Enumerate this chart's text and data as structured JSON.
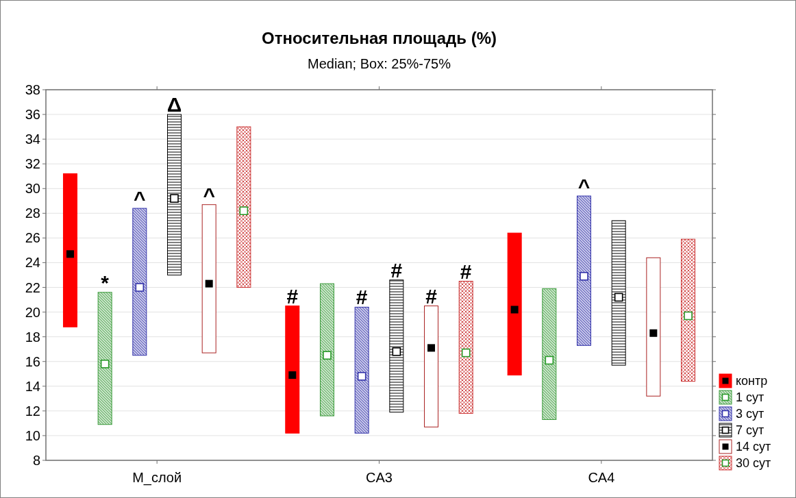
{
  "chart_data": {
    "type": "box",
    "title": "Относительная площадь (%)",
    "subtitle": "Median; Box: 25%-75%",
    "categories": [
      "M_слой",
      "CA3",
      "CA4"
    ],
    "ylim": [
      8,
      38
    ],
    "yticks": [
      8,
      10,
      12,
      14,
      16,
      18,
      20,
      22,
      24,
      26,
      28,
      30,
      32,
      34,
      36,
      38
    ],
    "grid": "y",
    "legend": "bottom right",
    "series": [
      {
        "name": "контр",
        "color": "#ff0000",
        "boxes": [
          {
            "low": 18.8,
            "q1": 18.8,
            "median": 24.7,
            "q3": 31.2,
            "high": 31.2
          },
          {
            "low": 10.2,
            "q1": 10.2,
            "median": 14.9,
            "q3": 20.5,
            "high": 20.5
          },
          {
            "low": 14.9,
            "q1": 14.9,
            "median": 20.2,
            "q3": 26.4,
            "high": 26.4
          }
        ]
      },
      {
        "name": "1 сут",
        "color": "#3a9a3a",
        "boxes": [
          {
            "low": 10.9,
            "q1": 10.9,
            "median": 15.8,
            "q3": 21.6,
            "high": 21.6
          },
          {
            "low": 11.6,
            "q1": 11.6,
            "median": 16.5,
            "q3": 22.3,
            "high": 22.3
          },
          {
            "low": 11.3,
            "q1": 11.3,
            "median": 16.1,
            "q3": 21.9,
            "high": 21.9
          }
        ]
      },
      {
        "name": "3 сут",
        "color": "#3333aa",
        "boxes": [
          {
            "low": 16.5,
            "q1": 16.5,
            "median": 22.0,
            "q3": 28.4,
            "high": 28.4
          },
          {
            "low": 10.2,
            "q1": 10.2,
            "median": 14.8,
            "q3": 20.4,
            "high": 20.4
          },
          {
            "low": 17.3,
            "q1": 17.3,
            "median": 22.9,
            "q3": 29.4,
            "high": 29.4
          }
        ]
      },
      {
        "name": "7 сут",
        "color": "#000000",
        "boxes": [
          {
            "low": 23.0,
            "q1": 23.0,
            "median": 29.2,
            "q3": 36.0,
            "high": 36.0
          },
          {
            "low": 11.9,
            "q1": 11.9,
            "median": 16.8,
            "q3": 22.6,
            "high": 22.6
          },
          {
            "low": 15.7,
            "q1": 15.7,
            "median": 21.2,
            "q3": 27.4,
            "high": 27.4
          }
        ]
      },
      {
        "name": "14 сут",
        "color": "#aa2222",
        "boxes": [
          {
            "low": 16.7,
            "q1": 16.7,
            "median": 22.3,
            "q3": 28.7,
            "high": 28.7
          },
          {
            "low": 10.7,
            "q1": 10.7,
            "median": 17.1,
            "q3": 20.5,
            "high": 20.5
          },
          {
            "low": 13.2,
            "q1": 13.2,
            "median": 18.3,
            "q3": 24.4,
            "high": 24.4
          }
        ]
      },
      {
        "name": "30 сут",
        "color": "#cc3333",
        "boxes": [
          {
            "low": 22.0,
            "q1": 22.0,
            "median": 28.2,
            "q3": 35.0,
            "high": 35.0
          },
          {
            "low": 11.8,
            "q1": 11.8,
            "median": 16.7,
            "q3": 22.5,
            "high": 22.5
          },
          {
            "low": 14.4,
            "q1": 14.4,
            "median": 19.7,
            "q3": 25.9,
            "high": 25.9
          }
        ]
      }
    ],
    "annotations": [
      "*",
      "^",
      "Δ",
      "^",
      "#",
      "#",
      "#",
      "#",
      "#",
      "^"
    ]
  }
}
